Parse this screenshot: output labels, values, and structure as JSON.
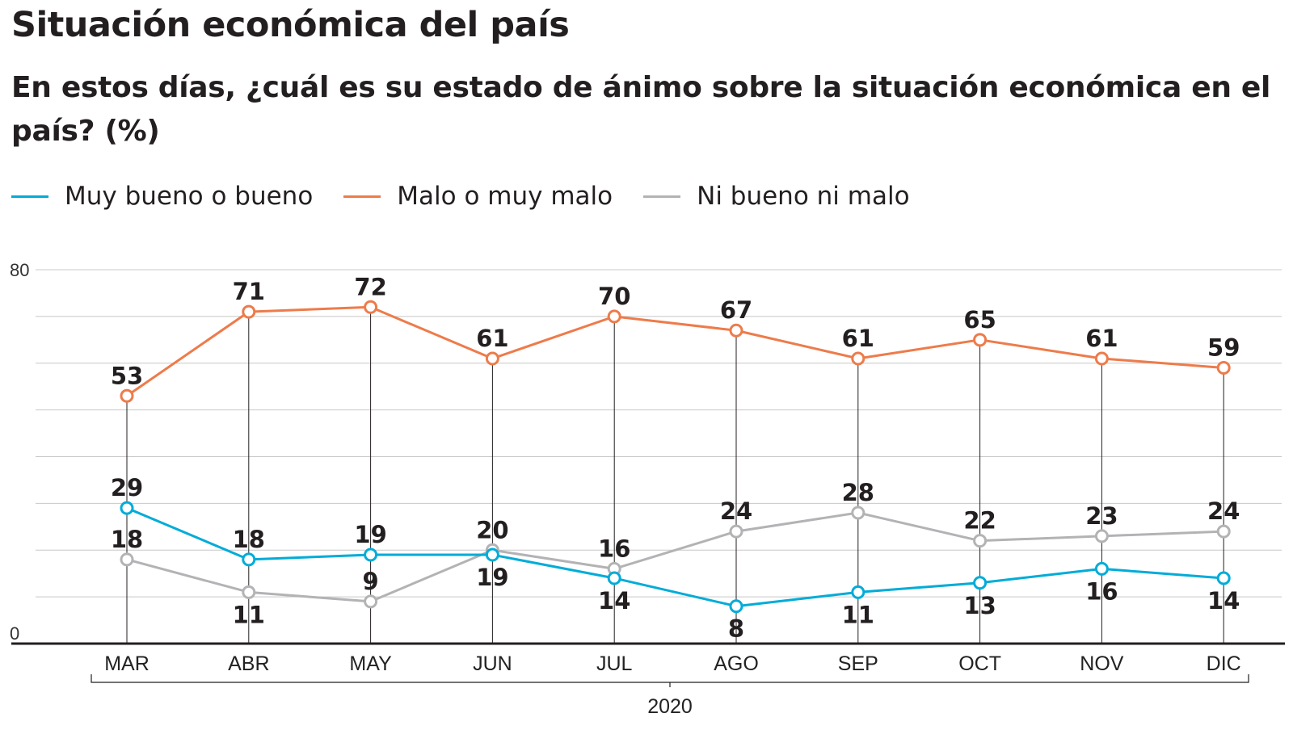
{
  "header": {
    "title": "Situación económica del país",
    "subtitle": "En estos días, ¿cuál es su estado de ánimo sobre la situación económica en el país? (%)"
  },
  "chart_data": {
    "type": "line",
    "title": "Situación económica del país",
    "subtitle": "En estos días, ¿cuál es su estado de ánimo sobre la situación económica en el país? (%)",
    "categories": [
      "MAR",
      "ABR",
      "MAY",
      "JUN",
      "JUL",
      "AGO",
      "SEP",
      "OCT",
      "NOV",
      "DIC"
    ],
    "year_label": "2020",
    "ylim": [
      0,
      80
    ],
    "ytick_labels": [
      "0",
      "80"
    ],
    "grid": true,
    "legend_position": "top-left",
    "series": [
      {
        "name": "Muy bueno o bueno",
        "color": "#00acd8",
        "values": [
          29,
          18,
          19,
          19,
          14,
          8,
          11,
          13,
          16,
          14
        ],
        "label_side": [
          "above",
          "above",
          "above",
          "below",
          "below",
          "below",
          "below",
          "below",
          "below",
          "below"
        ]
      },
      {
        "name": "Malo o muy malo",
        "color": "#ee7b4a",
        "values": [
          53,
          71,
          72,
          61,
          70,
          67,
          61,
          65,
          61,
          59
        ],
        "label_side": [
          "above",
          "above",
          "above",
          "above",
          "above",
          "above",
          "above",
          "above",
          "above",
          "above"
        ]
      },
      {
        "name": "Ni bueno ni malo",
        "color": "#b3b3b6",
        "values": [
          18,
          11,
          9,
          20,
          16,
          24,
          28,
          22,
          23,
          24
        ],
        "label_side": [
          "above",
          "below",
          "above",
          "above",
          "above",
          "above",
          "above",
          "above",
          "above",
          "above"
        ]
      }
    ]
  }
}
